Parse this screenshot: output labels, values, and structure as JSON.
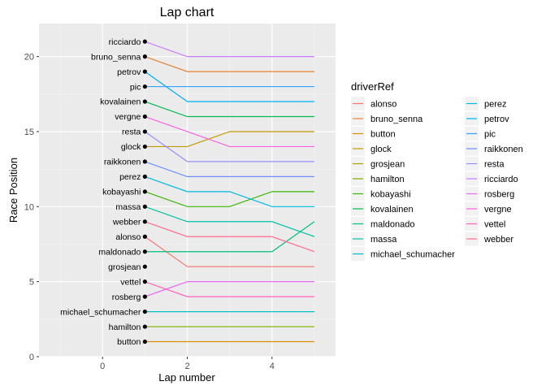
{
  "chart_data": {
    "type": "line",
    "title": "Lap chart",
    "xlabel": "Lap number",
    "ylabel": "Race Position",
    "xlim": [
      -1.5,
      5.5
    ],
    "ylim": [
      0,
      22.2
    ],
    "x_ticks": [
      0,
      2,
      4
    ],
    "y_ticks": [
      0,
      5,
      10,
      15,
      20
    ],
    "grid": true,
    "legend": {
      "title": "driverRef",
      "position": "right"
    },
    "x": [
      1,
      2,
      3,
      4,
      5
    ],
    "series": [
      {
        "name": "alonso",
        "color": "#F8766D",
        "values": [
          8,
          6,
          6,
          6,
          6
        ]
      },
      {
        "name": "bruno_senna",
        "color": "#EA8331",
        "values": [
          20,
          19,
          19,
          19,
          19
        ]
      },
      {
        "name": "button",
        "color": "#D89000",
        "values": [
          1,
          1,
          1,
          1,
          1
        ]
      },
      {
        "name": "glock",
        "color": "#C09B00",
        "values": [
          14,
          14,
          15,
          15,
          15
        ]
      },
      {
        "name": "grosjean",
        "color": "#A3A500",
        "values": [
          6,
          null,
          null,
          null,
          null
        ]
      },
      {
        "name": "hamilton",
        "color": "#7CAE00",
        "values": [
          2,
          2,
          2,
          2,
          2
        ]
      },
      {
        "name": "kobayashi",
        "color": "#39B600",
        "values": [
          11,
          10,
          10,
          11,
          11
        ]
      },
      {
        "name": "kovalainen",
        "color": "#00BB4E",
        "values": [
          17,
          16,
          16,
          16,
          16
        ]
      },
      {
        "name": "maldonado",
        "color": "#00BF7D",
        "values": [
          7,
          7,
          7,
          7,
          9
        ]
      },
      {
        "name": "massa",
        "color": "#00C1A3",
        "values": [
          10,
          9,
          9,
          9,
          8
        ]
      },
      {
        "name": "michael_schumacher",
        "color": "#00BFC4",
        "values": [
          3,
          3,
          3,
          3,
          3
        ]
      },
      {
        "name": "perez",
        "color": "#00BAE0",
        "values": [
          12,
          11,
          11,
          10,
          10
        ]
      },
      {
        "name": "petrov",
        "color": "#00B0F6",
        "values": [
          19,
          17,
          17,
          17,
          17
        ]
      },
      {
        "name": "pic",
        "color": "#35A2FF",
        "values": [
          18,
          18,
          18,
          18,
          18
        ]
      },
      {
        "name": "raikkonen",
        "color": "#6A8FFF",
        "values": [
          13,
          12,
          12,
          12,
          12
        ]
      },
      {
        "name": "resta",
        "color": "#9590FF",
        "values": [
          15,
          13,
          13,
          13,
          13
        ]
      },
      {
        "name": "ricciardo",
        "color": "#C77CFF",
        "values": [
          21,
          20,
          20,
          20,
          20
        ]
      },
      {
        "name": "rosberg",
        "color": "#E76BF3",
        "values": [
          4,
          5,
          5,
          5,
          5
        ]
      },
      {
        "name": "vergne",
        "color": "#FA62DB",
        "values": [
          16,
          15,
          14,
          14,
          14
        ]
      },
      {
        "name": "vettel",
        "color": "#FF62BC",
        "values": [
          5,
          4,
          4,
          4,
          4
        ]
      },
      {
        "name": "webber",
        "color": "#FF6C90",
        "values": [
          9,
          8,
          8,
          8,
          7
        ]
      }
    ]
  }
}
